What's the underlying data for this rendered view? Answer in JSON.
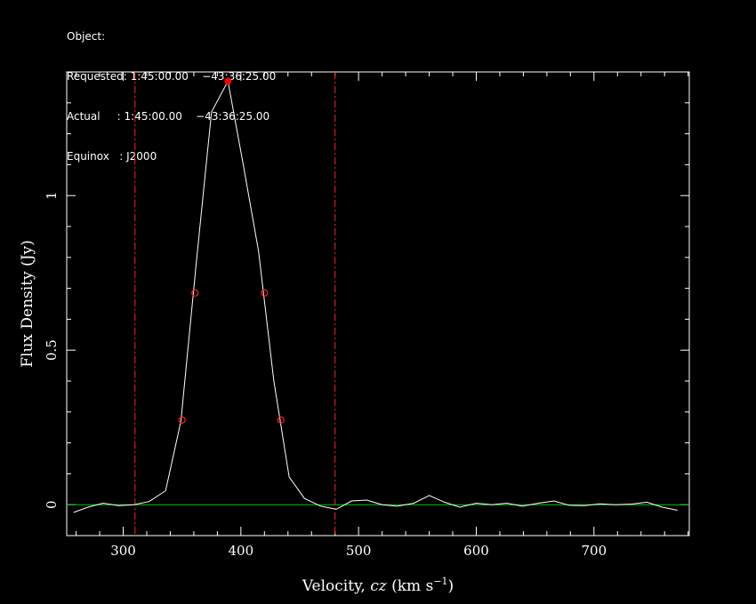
{
  "header": {
    "object": "Object:",
    "requested": "Requested: 1:45:00.00    −43:36:25.00",
    "actual": "Actual     : 1:45:00.00    −43:36:25.00",
    "equinox": "Equinox   : J2000"
  },
  "chart_data": {
    "type": "line",
    "title": "",
    "xlabel": "Velocity, cz (km s⁻¹)",
    "ylabel": "Flux Density (Jy)",
    "xlim": [
      252,
      781
    ],
    "ylim": [
      -0.1,
      1.4
    ],
    "x_ticks": [
      300,
      400,
      500,
      600,
      700
    ],
    "y_ticks": [
      0,
      0.5,
      1
    ],
    "y_tick_labels": [
      "0",
      "0.5",
      "1"
    ],
    "x_tick_labels": [
      "300",
      "400",
      "500",
      "600",
      "700"
    ],
    "series": [
      {
        "color": "#ffffff",
        "x": [
          258,
          270,
          283,
          296,
          309,
          322,
          336,
          349,
          362,
          375,
          389,
          402,
          415,
          428,
          441,
          454,
          468,
          481,
          494,
          507,
          520,
          533,
          547,
          560,
          573,
          586,
          600,
          613,
          626,
          639,
          653,
          666,
          679,
          692,
          705,
          718,
          732,
          745,
          758,
          771
        ],
        "y": [
          -0.025,
          -0.008,
          0.005,
          -0.003,
          0.0,
          0.01,
          0.045,
          0.27,
          0.78,
          1.27,
          1.37,
          1.1,
          0.82,
          0.4,
          0.09,
          0.02,
          -0.005,
          -0.015,
          0.012,
          0.015,
          0.0,
          -0.005,
          0.005,
          0.03,
          0.008,
          -0.008,
          0.005,
          0.0,
          0.005,
          -0.005,
          0.005,
          0.012,
          -0.002,
          -0.003,
          0.003,
          0.0,
          0.002,
          0.008,
          -0.008,
          -0.018
        ]
      }
    ],
    "baseline": {
      "y": 0,
      "color": "#00c800"
    },
    "window_lines": {
      "x": [
        310,
        480
      ],
      "color": "#ff2020"
    },
    "peak_marker": {
      "x": 389,
      "y": 1.37,
      "color": "#ff0000"
    },
    "width_markers": [
      {
        "x": 361,
        "y": 0.685
      },
      {
        "x": 420,
        "y": 0.685
      },
      {
        "x": 350,
        "y": 0.274
      },
      {
        "x": 434,
        "y": 0.274
      }
    ],
    "grid": false,
    "legend": "none"
  }
}
